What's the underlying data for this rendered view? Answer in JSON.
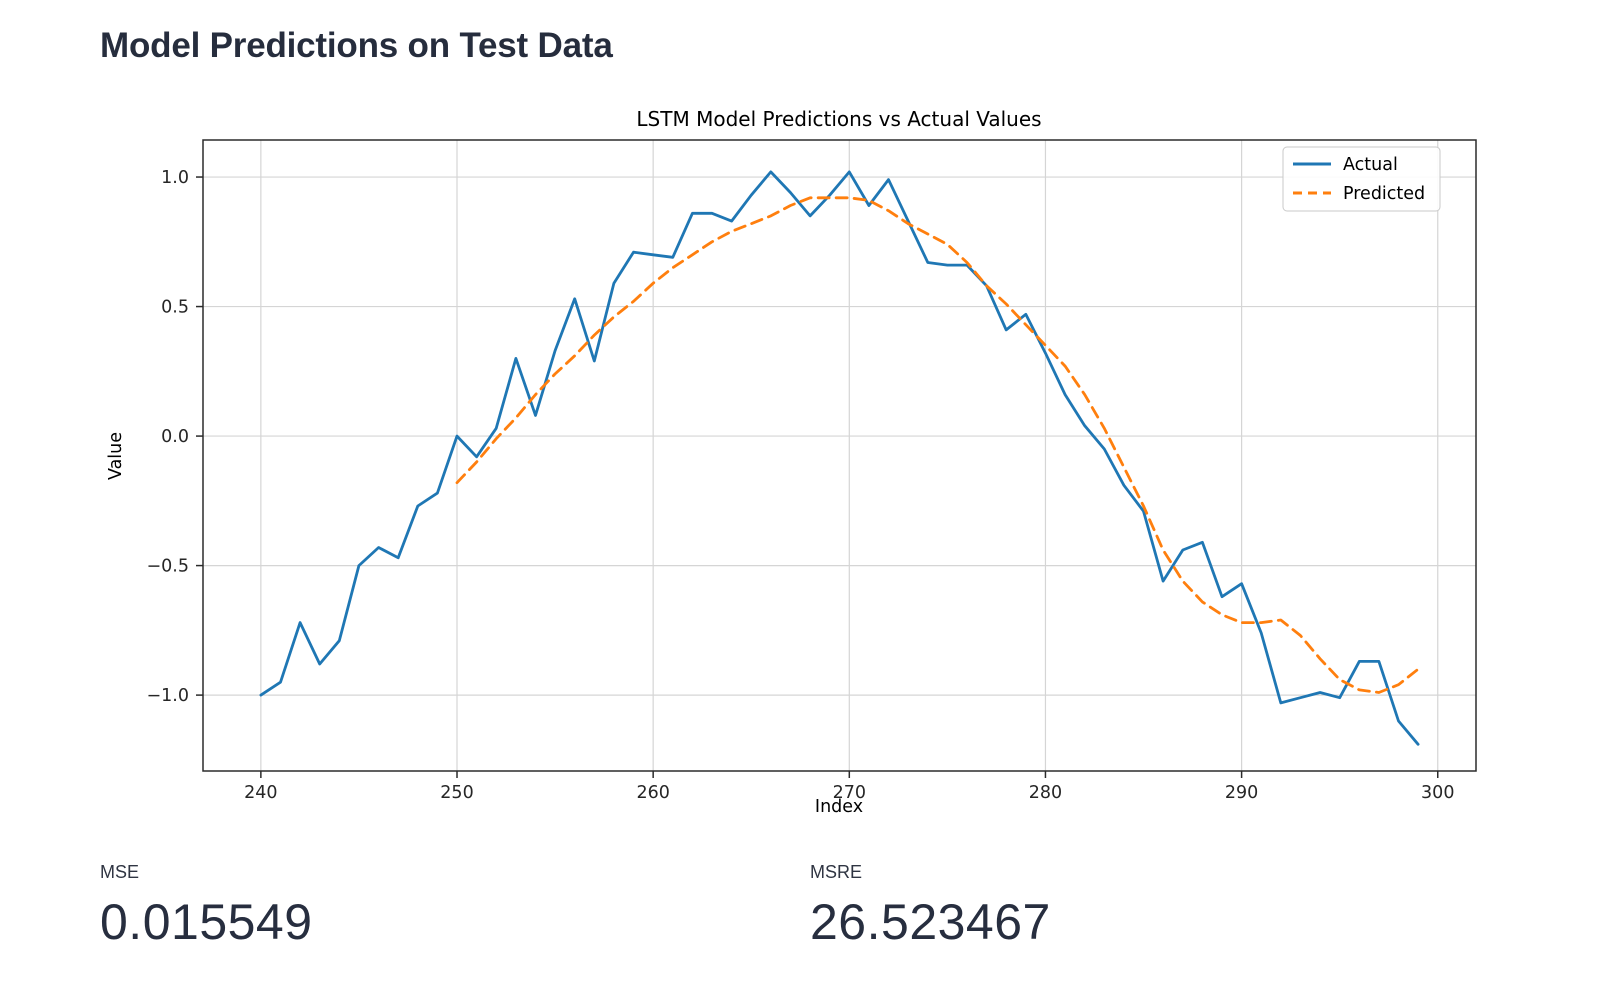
{
  "page": {
    "heading": "Model Predictions on Test Data"
  },
  "chart": {
    "title": "LSTM Model Predictions vs Actual Values",
    "xlabel": "Index",
    "ylabel": "Value",
    "x_ticks": [
      240,
      250,
      260,
      270,
      280,
      290,
      300
    ],
    "y_ticks": [
      {
        "v": 1.0,
        "label": "1.0"
      },
      {
        "v": 0.5,
        "label": "0.5"
      },
      {
        "v": 0.0,
        "label": "0.0"
      },
      {
        "v": -0.5,
        "label": "−0.5"
      },
      {
        "v": -1.0,
        "label": "−1.0"
      }
    ],
    "colors": {
      "actual": "#1f77b4",
      "predicted": "#ff7f0e",
      "grid": "#d5d5d5",
      "spine": "#2b2b2b",
      "tick_text": "#262626"
    },
    "legend": [
      {
        "label": "Actual",
        "style": "solid"
      },
      {
        "label": "Predicted",
        "style": "dashed"
      }
    ]
  },
  "chart_data": {
    "type": "line",
    "title": "LSTM Model Predictions vs Actual Values",
    "xlabel": "Index",
    "ylabel": "Value",
    "xlim": [
      237.05,
      301.95
    ],
    "ylim": [
      -1.293,
      1.143
    ],
    "grid": true,
    "legend_position": "upper right",
    "series": [
      {
        "name": "Actual",
        "line_style": "solid",
        "color": "#1f77b4",
        "x_start": 240,
        "values": [
          -1.0,
          -0.95,
          -0.72,
          -0.88,
          -0.79,
          -0.5,
          -0.43,
          -0.47,
          -0.27,
          -0.22,
          0.0,
          -0.08,
          0.03,
          0.3,
          0.08,
          0.33,
          0.53,
          0.29,
          0.59,
          0.71,
          0.7,
          0.69,
          0.86,
          0.86,
          0.83,
          0.93,
          1.02,
          0.94,
          0.85,
          0.93,
          1.02,
          0.89,
          0.99,
          0.83,
          0.67,
          0.66,
          0.66,
          0.58,
          0.41,
          0.47,
          0.32,
          0.16,
          0.04,
          -0.05,
          -0.19,
          -0.29,
          -0.56,
          -0.44,
          -0.41,
          -0.62,
          -0.57,
          -0.76,
          -1.03,
          -1.01,
          -0.99,
          -1.01,
          -0.87,
          -0.87,
          -1.1,
          -1.19
        ]
      },
      {
        "name": "Predicted",
        "line_style": "dashed",
        "color": "#ff7f0e",
        "x_start": 250,
        "values": [
          -0.18,
          -0.1,
          -0.01,
          0.07,
          0.16,
          0.24,
          0.31,
          0.39,
          0.46,
          0.52,
          0.59,
          0.65,
          0.7,
          0.75,
          0.79,
          0.82,
          0.85,
          0.89,
          0.92,
          0.92,
          0.92,
          0.91,
          0.87,
          0.82,
          0.78,
          0.74,
          0.67,
          0.58,
          0.51,
          0.43,
          0.35,
          0.27,
          0.16,
          0.03,
          -0.12,
          -0.27,
          -0.44,
          -0.56,
          -0.64,
          -0.69,
          -0.72,
          -0.72,
          -0.71,
          -0.77,
          -0.86,
          -0.94,
          -0.98,
          -0.99,
          -0.96,
          -0.9
        ]
      }
    ]
  },
  "metrics": [
    {
      "label": "MSE",
      "value": "0.015549"
    },
    {
      "label": "MSRE",
      "value": "26.523467"
    }
  ]
}
